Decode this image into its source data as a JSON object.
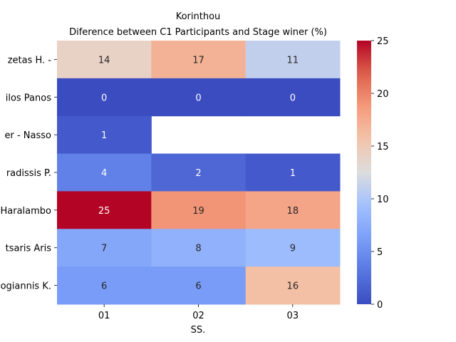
{
  "chart_data": {
    "type": "heatmap",
    "title": "Korinthou",
    "subtitle": "Diference between C1 Participants and Stage winer (%)",
    "xlabel": "SS.",
    "ylabel": "",
    "columns": [
      "01",
      "02",
      "03"
    ],
    "rows": [
      "zetas H.  -",
      "ilos Panos",
      "er  - Nasso",
      "radissis P.",
      "Haralambo",
      "tsaris Aris",
      "ogiannis K."
    ],
    "values": [
      [
        14,
        17,
        11
      ],
      [
        0,
        0,
        0
      ],
      [
        1,
        null,
        null
      ],
      [
        4,
        2,
        1
      ],
      [
        25,
        19,
        18
      ],
      [
        7,
        8,
        9
      ],
      [
        6,
        6,
        16
      ]
    ],
    "colormap": "coolwarm",
    "vmin": 0,
    "vmax": 25,
    "colorbar_ticks": [
      0,
      5,
      10,
      15,
      20,
      25
    ]
  }
}
